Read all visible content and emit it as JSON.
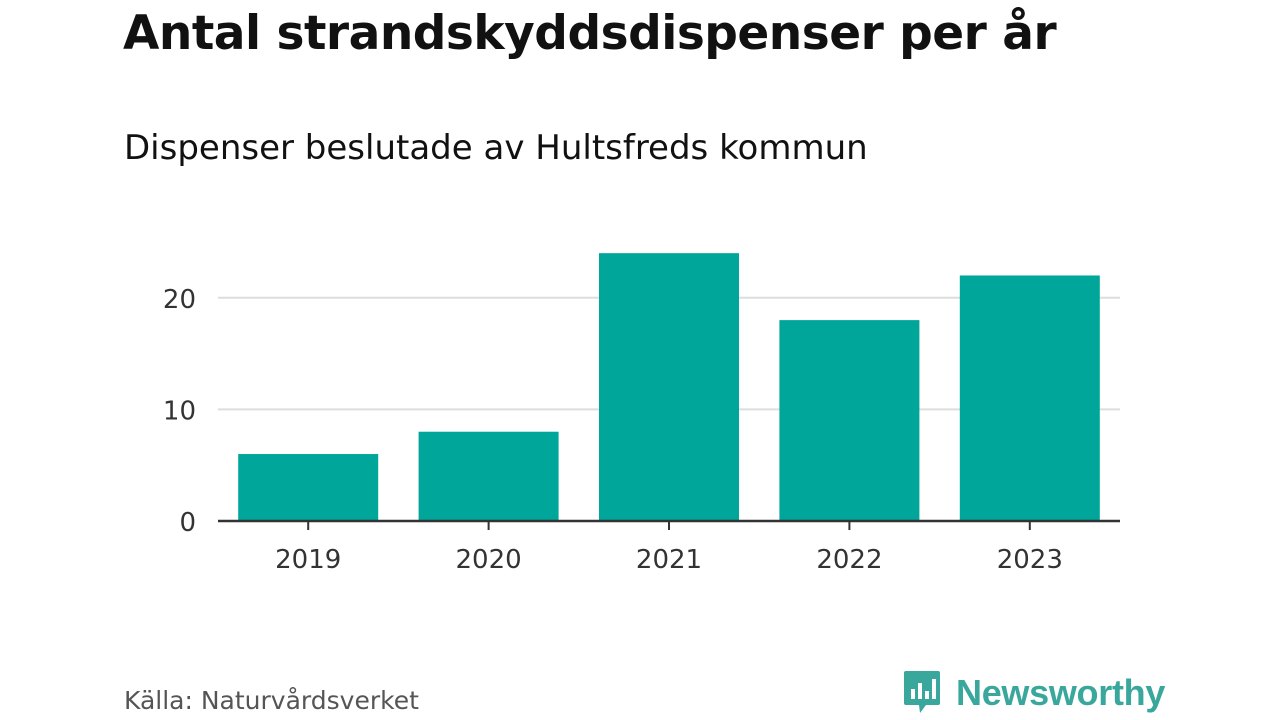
{
  "header": {
    "title": "Antal strandskyddsdispenser per år",
    "subtitle": "Dispenser beslutade av Hultsfreds kommun"
  },
  "footer": {
    "source": "Källa: Naturvårdsverket",
    "brand": "Newsworthy",
    "brand_color": "#3aa79d"
  },
  "chart_data": {
    "type": "bar",
    "title": "Antal strandskyddsdispenser per år",
    "subtitle": "Dispenser beslutade av Hultsfreds kommun",
    "categories": [
      "2019",
      "2020",
      "2021",
      "2022",
      "2023"
    ],
    "values": [
      6,
      8,
      24,
      18,
      22
    ],
    "xlabel": "",
    "ylabel": "",
    "ylim": [
      0,
      25
    ],
    "yticks": [
      0,
      10,
      20
    ],
    "grid": true,
    "bar_color": "#00a699",
    "grid_color": "#dddddd",
    "axis_color": "#333333"
  }
}
